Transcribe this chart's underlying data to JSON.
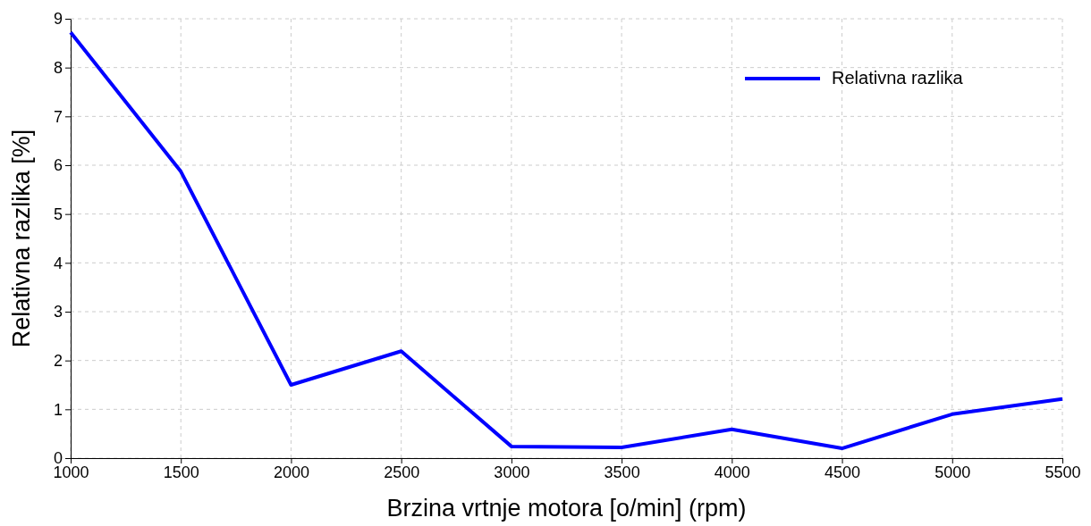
{
  "chart_data": {
    "type": "line",
    "xlabel": "Brzina vrtnje motora [o/min] (rpm)",
    "ylabel": "Relativna razlika [%]",
    "x": [
      1000,
      1500,
      2000,
      2500,
      3000,
      3500,
      4000,
      4500,
      5000,
      5500
    ],
    "series": [
      {
        "name": "Relativna razlika",
        "color": "#0000ff",
        "values": [
          8.72,
          5.87,
          1.5,
          2.19,
          0.24,
          0.22,
          0.59,
          0.2,
          0.9,
          1.21
        ]
      }
    ],
    "xlim": [
      1000,
      5500
    ],
    "xticks": [
      1000,
      1500,
      2000,
      2500,
      3000,
      3500,
      4000,
      4500,
      5000,
      5500
    ],
    "ylim": [
      0,
      9
    ],
    "yticks": [
      0,
      1,
      2,
      3,
      4,
      5,
      6,
      7,
      8,
      9
    ],
    "grid": true,
    "legend": "top right",
    "marker": "none",
    "line_style": "solid"
  }
}
